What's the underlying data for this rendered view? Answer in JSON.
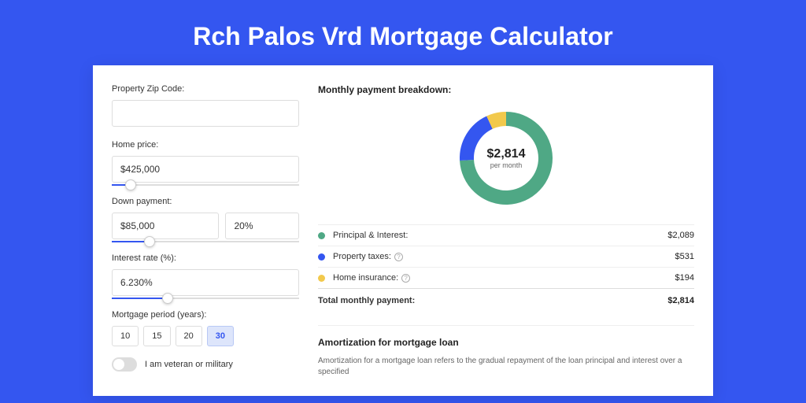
{
  "page_title": "Rch Palos Vrd Mortgage Calculator",
  "colors": {
    "page_bg": "#3456f0",
    "accent": "#3456f0"
  },
  "form": {
    "zip": {
      "label": "Property Zip Code:",
      "value": ""
    },
    "home_price": {
      "label": "Home price:",
      "value": "$425,000",
      "slider_pct": 10
    },
    "down_payment": {
      "label": "Down payment:",
      "amount": "$85,000",
      "percent": "20%",
      "slider_pct": 20
    },
    "interest": {
      "label": "Interest rate (%):",
      "value": "6.230%",
      "slider_pct": 30
    },
    "period": {
      "label": "Mortgage period (years):",
      "options": [
        "10",
        "15",
        "20",
        "30"
      ],
      "selected": "30"
    },
    "veteran": {
      "label": "I am veteran or military",
      "on": false
    }
  },
  "breakdown": {
    "title": "Monthly payment breakdown:",
    "center_amount": "$2,814",
    "center_sub": "per month",
    "donut": {
      "segments": [
        {
          "color": "#4fa885",
          "pct": 74.2
        },
        {
          "color": "#3456f0",
          "pct": 18.9
        },
        {
          "color": "#f2c94c",
          "pct": 6.9
        }
      ],
      "stroke_width": 18
    },
    "items": [
      {
        "label": "Principal & Interest:",
        "value": "$2,089",
        "color": "#4fa885",
        "info": false
      },
      {
        "label": "Property taxes:",
        "value": "$531",
        "color": "#3456f0",
        "info": true
      },
      {
        "label": "Home insurance:",
        "value": "$194",
        "color": "#f2c94c",
        "info": true
      }
    ],
    "total": {
      "label": "Total monthly payment:",
      "value": "$2,814"
    }
  },
  "amortization": {
    "title": "Amortization for mortgage loan",
    "text": "Amortization for a mortgage loan refers to the gradual repayment of the loan principal and interest over a specified"
  }
}
